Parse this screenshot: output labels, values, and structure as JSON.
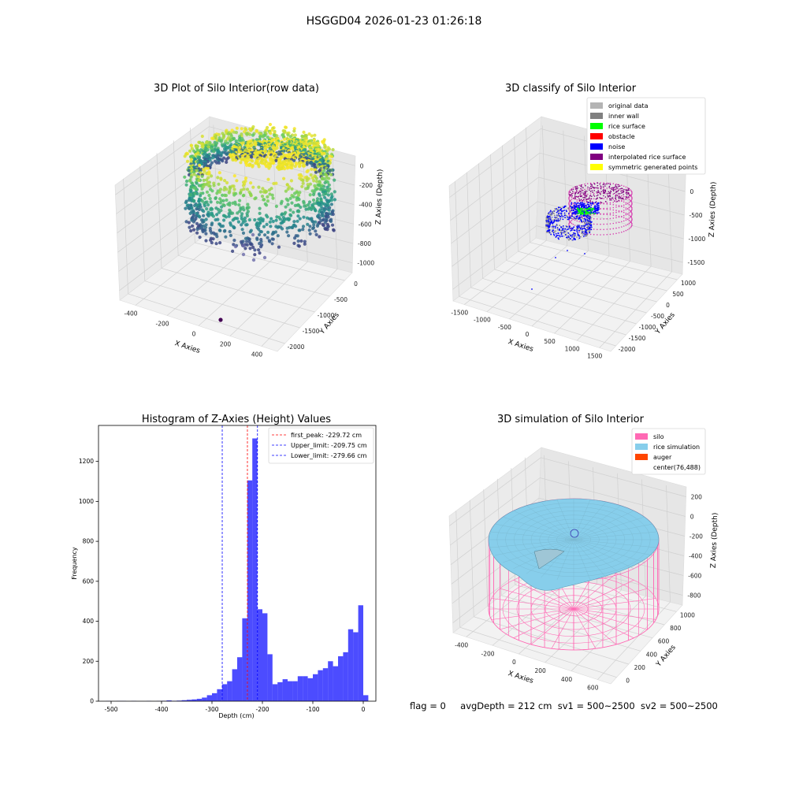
{
  "suptitle": "HSGGD04 2026-01-23 01:26:18",
  "chart_data": [
    {
      "type": "scatter",
      "projection": "3d",
      "title": "3D Plot of Silo Interior(row data)",
      "xlabel": "X Axies",
      "ylabel": "Y Axies",
      "zlabel": "Z Axies (Depth)",
      "x_ticks": [
        "-400",
        "-200",
        "0",
        "200",
        "400"
      ],
      "y_ticks": [
        "-2000",
        "-1500",
        "-1000",
        "-500",
        "0"
      ],
      "z_ticks": [
        "-1000",
        "-800",
        "-600",
        "-400",
        "-200",
        "0"
      ],
      "xlim": [
        -500,
        500
      ],
      "ylim": [
        -2100,
        100
      ],
      "zlim": [
        -1100,
        50
      ],
      "colormap": "viridis",
      "grid": true
    },
    {
      "type": "scatter",
      "projection": "3d",
      "title": "3D classify of Silo Interior",
      "xlabel": "X Axies",
      "ylabel": "Y Axies",
      "zlabel": "Z Axies (Depth)",
      "x_ticks": [
        "-1500",
        "-1000",
        "-500",
        "0",
        "500",
        "1000",
        "1500"
      ],
      "y_ticks": [
        "-2000",
        "-1500",
        "-1000",
        "-500",
        "0",
        "500",
        "1000"
      ],
      "z_ticks": [
        "-1500",
        "-1000",
        "-500",
        "0",
        "500"
      ],
      "legend": [
        {
          "label": "original data",
          "color": "#b4b4b4"
        },
        {
          "label": "inner wall",
          "color": "#808080"
        },
        {
          "label": "rice surface",
          "color": "#00ff00"
        },
        {
          "label": "obstacle",
          "color": "#ff0000"
        },
        {
          "label": "noise",
          "color": "#0000ff"
        },
        {
          "label": "interpolated rice surface",
          "color": "#800080"
        },
        {
          "label": "symmetric generated points",
          "color": "#ffff00"
        }
      ],
      "legend_position": "upper-right",
      "grid": true
    },
    {
      "type": "bar",
      "subtype": "histogram",
      "title": "Histogram of Z-Axies (Height) Values",
      "xlabel": "Depth (cm)",
      "ylabel": "Frequency",
      "xlim": [
        -525,
        25
      ],
      "ylim": [
        0,
        1380
      ],
      "x_ticks": [
        -500,
        -400,
        -300,
        -200,
        -100,
        0
      ],
      "y_ticks": [
        0,
        200,
        400,
        600,
        800,
        1000,
        1200
      ],
      "bin_width": 10,
      "bin_start": -510,
      "counts": [
        1,
        0,
        1,
        1,
        0,
        1,
        0,
        0,
        1,
        0,
        1,
        2,
        4,
        2,
        3,
        5,
        7,
        9,
        12,
        18,
        30,
        40,
        60,
        85,
        100,
        160,
        220,
        415,
        1105,
        1315,
        460,
        440,
        235,
        85,
        95,
        110,
        100,
        100,
        125,
        125,
        115,
        135,
        155,
        165,
        200,
        175,
        225,
        245,
        360,
        345,
        480,
        30
      ],
      "bar_color": "#0000ff",
      "bar_alpha": 0.7,
      "vlines": [
        {
          "label": "first_peak: -229.72 cm",
          "x": -229.72,
          "color": "#ff0000"
        },
        {
          "label": "Upper_limit: -209.75 cm",
          "x": -209.75,
          "color": "#0000ff"
        },
        {
          "label": "Lower_limit: -279.66 cm",
          "x": -279.66,
          "color": "#0000ff"
        }
      ],
      "legend_position": "upper-right",
      "grid": false
    },
    {
      "type": "surface",
      "projection": "3d",
      "title": "3D simulation of Silo Interior",
      "xlabel": "X Axies",
      "ylabel": "Y Axies",
      "zlabel": "Z Axies (Depth)",
      "x_ticks": [
        "-400",
        "-200",
        "0",
        "200",
        "400",
        "600"
      ],
      "y_ticks": [
        "0",
        "200",
        "400",
        "600",
        "800",
        "1000"
      ],
      "z_ticks": [
        "-800",
        "-600",
        "-400",
        "-200",
        "0",
        "200"
      ],
      "legend": [
        {
          "label": "silo",
          "color": "#ff69b4"
        },
        {
          "label": "rice simulation",
          "color": "#87ceeb"
        },
        {
          "label": "auger",
          "color": "#ff4500"
        },
        {
          "label": "center(76,488)",
          "color": ""
        }
      ],
      "legend_position": "upper-right",
      "grid": true
    }
  ],
  "footer": {
    "flag": "flag = 0",
    "avg_depth": "avgDepth = 212 cm",
    "sv1": "sv1 = 500~2500",
    "sv2": "sv2 = 500~2500"
  }
}
